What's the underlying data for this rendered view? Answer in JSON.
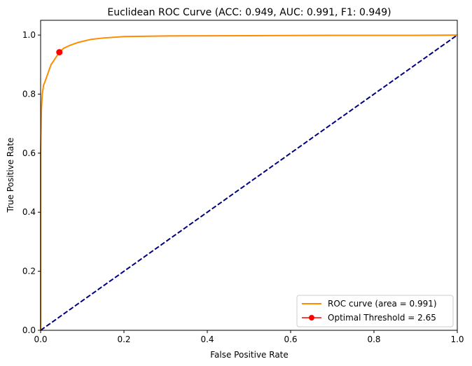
{
  "chart_data": {
    "type": "line",
    "title": "Euclidean ROC Curve (ACC:  0.949,  AUC:  0.991,  F1:  0.949)",
    "xlabel": "False Positive Rate",
    "ylabel": "True Positive Rate",
    "xlim": [
      0.0,
      1.0
    ],
    "ylim": [
      0.0,
      1.05
    ],
    "xticks": [
      "0.0",
      "0.2",
      "0.4",
      "0.6",
      "0.8",
      "1.0"
    ],
    "yticks": [
      "0.0",
      "0.2",
      "0.4",
      "0.6",
      "0.8",
      "1.0"
    ],
    "grid": false,
    "legend_position": "lower-right",
    "series": [
      {
        "name": "ROC curve (area = 0.991)",
        "color": "#ff8c00",
        "style": "solid",
        "x": [
          0.0,
          0.0,
          0.002,
          0.004,
          0.007,
          0.01,
          0.015,
          0.02,
          0.025,
          0.03,
          0.037,
          0.045,
          0.055,
          0.07,
          0.09,
          0.12,
          0.15,
          0.2,
          0.3,
          0.5,
          0.7,
          0.9,
          1.0
        ],
        "y": [
          0.0,
          0.6,
          0.75,
          0.8,
          0.83,
          0.84,
          0.86,
          0.88,
          0.9,
          0.91,
          0.925,
          0.942,
          0.955,
          0.965,
          0.975,
          0.985,
          0.99,
          0.995,
          0.997,
          0.998,
          0.999,
          0.999,
          1.0
        ]
      },
      {
        "name": "",
        "color": "#000080",
        "style": "dashed",
        "x": [
          0.0,
          1.0
        ],
        "y": [
          0.0,
          1.0
        ]
      }
    ],
    "markers": [
      {
        "name": "Optimal Threshold = 2.65",
        "color": "#ff0000",
        "x": 0.045,
        "y": 0.942
      }
    ]
  }
}
